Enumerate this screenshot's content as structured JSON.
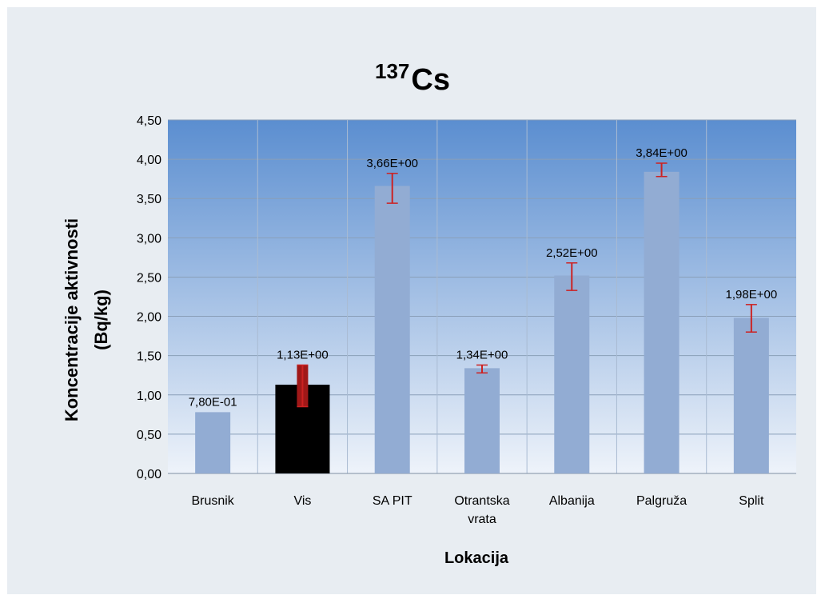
{
  "chart_data": {
    "type": "bar",
    "title": "Cs",
    "title_superscript": "137",
    "xlabel": "Lokacija",
    "ylabel_line1": "Koncentracije aktivnosti",
    "ylabel_line2": "(Bq/kg)",
    "ylim": [
      0,
      4.5
    ],
    "yticks": [
      "0,00",
      "0,50",
      "1,00",
      "1,50",
      "2,00",
      "2,50",
      "3,00",
      "3,50",
      "4,00",
      "4,50"
    ],
    "categories": [
      [
        "Brusnik"
      ],
      [
        "Vis"
      ],
      [
        "SA PIT"
      ],
      [
        "Otrantska",
        "vrata"
      ],
      [
        "Albanija"
      ],
      [
        "Palgruža"
      ],
      [
        "Split"
      ]
    ],
    "values": [
      0.78,
      1.13,
      3.66,
      1.34,
      2.52,
      3.84,
      1.98
    ],
    "error_low": [
      null,
      0.85,
      3.44,
      1.28,
      2.33,
      3.78,
      1.8
    ],
    "error_high": [
      null,
      1.38,
      3.82,
      1.38,
      2.68,
      3.95,
      2.15
    ],
    "data_labels": [
      "7,80E-01",
      "1,13E+00",
      "3,66E+00",
      "1,34E+00",
      "2,52E+00",
      "3,84E+00",
      "1,98E+00"
    ],
    "highlighted_category_index": 1,
    "grid": true,
    "legend": "none",
    "colors": {
      "background": "#e8edf2",
      "plot_top": "#5b8ed0",
      "plot_bottom": "#eef3fa",
      "bar": "#92acd3",
      "bar_highlight": "#000000",
      "bar_highlight_accent": "#a01818",
      "gridline": "#8a9fb8",
      "error_bar": "#cc2222",
      "text": "#000000"
    }
  }
}
